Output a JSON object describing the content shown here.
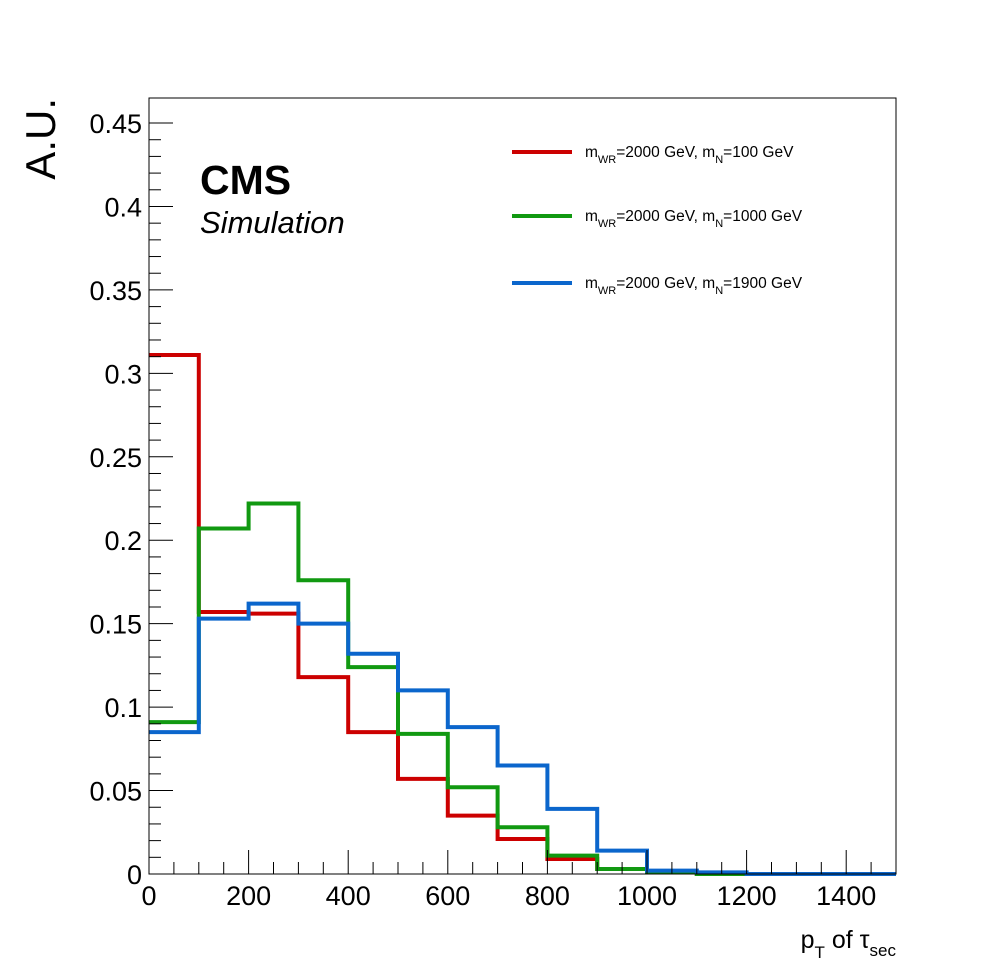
{
  "chart_data": {
    "type": "line",
    "step": true,
    "title": "",
    "xlabel": {
      "base": "p",
      "base_sub": "T",
      "mid": " of ",
      "symbol": "τ",
      "symbol_sub": "sec"
    },
    "ylabel": "A.U.",
    "xlim": [
      0,
      1500
    ],
    "ylim": [
      0,
      0.465
    ],
    "x_ticks": [
      "0",
      "200",
      "400",
      "600",
      "800",
      "1000",
      "1200",
      "1400"
    ],
    "y_ticks": [
      "0",
      "0.05",
      "0.1",
      "0.15",
      "0.2",
      "0.25",
      "0.3",
      "0.35",
      "0.4",
      "0.45"
    ],
    "x_tick_values": [
      0,
      200,
      400,
      600,
      800,
      1000,
      1200,
      1400
    ],
    "y_tick_values": [
      0,
      0.05,
      0.1,
      0.15,
      0.2,
      0.25,
      0.3,
      0.35,
      0.4,
      0.45
    ],
    "bin_edges": [
      0,
      100,
      200,
      300,
      400,
      500,
      600,
      700,
      800,
      900,
      1000,
      1100,
      1200,
      1300,
      1400,
      1500
    ],
    "legend_position": "top-right",
    "grid": false,
    "annotations": {
      "experiment": "CMS",
      "status": "Simulation"
    },
    "series": [
      {
        "legend": {
          "m1": "m",
          "s1": "WR",
          "t1": "=2000 GeV, ",
          "m2": "m",
          "s2": "N",
          "t2": "=100 GeV"
        },
        "color": "#cc0000",
        "values": [
          0.311,
          0.157,
          0.156,
          0.118,
          0.085,
          0.057,
          0.035,
          0.021,
          0.009,
          0.003,
          0.001,
          0.0,
          0.0,
          0.0,
          0.0
        ]
      },
      {
        "legend": {
          "m1": "m",
          "s1": "WR",
          "t1": "=2000 GeV, ",
          "m2": "m",
          "s2": "N",
          "t2": "=1000 GeV"
        },
        "color": "#119911",
        "values": [
          0.091,
          0.207,
          0.222,
          0.176,
          0.124,
          0.084,
          0.052,
          0.028,
          0.011,
          0.003,
          0.001,
          0.0,
          0.0,
          0.0,
          0.0
        ]
      },
      {
        "legend": {
          "m1": "m",
          "s1": "WR",
          "t1": "=2000 GeV, ",
          "m2": "m",
          "s2": "N",
          "t2": "=1900 GeV"
        },
        "color": "#0b66cc",
        "values": [
          0.085,
          0.153,
          0.162,
          0.15,
          0.132,
          0.11,
          0.088,
          0.065,
          0.039,
          0.014,
          0.002,
          0.001,
          0.0,
          0.0,
          0.0
        ]
      }
    ]
  }
}
